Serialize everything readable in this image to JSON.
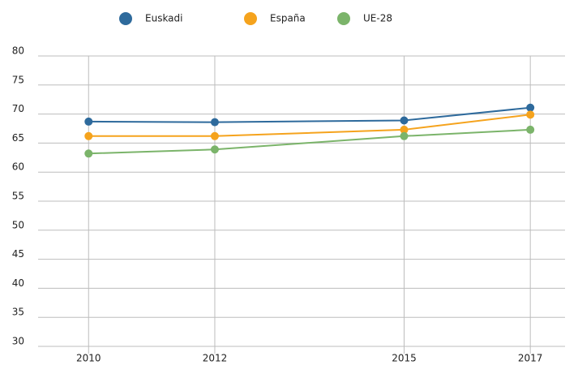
{
  "chart_data": {
    "type": "line",
    "x": [
      2010,
      2012,
      2015,
      2017
    ],
    "series": [
      {
        "name": "Euskadi",
        "color": "#2e6a9c",
        "values": [
          68.7,
          68.6,
          68.9,
          71.1
        ]
      },
      {
        "name": "España",
        "color": "#f5a31d",
        "values": [
          66.2,
          66.2,
          67.3,
          69.9
        ]
      },
      {
        "name": "UE-28",
        "color": "#7bb46a",
        "values": [
          63.2,
          63.9,
          66.2,
          67.3
        ]
      }
    ],
    "xlim": [
      2009.2,
      2017.55
    ],
    "xticks": [
      2010,
      2012,
      2015,
      2017
    ],
    "ylim": [
      30,
      80
    ],
    "yticks": [
      30,
      35,
      40,
      45,
      50,
      55,
      60,
      65,
      70,
      75,
      80
    ],
    "grid": true
  }
}
